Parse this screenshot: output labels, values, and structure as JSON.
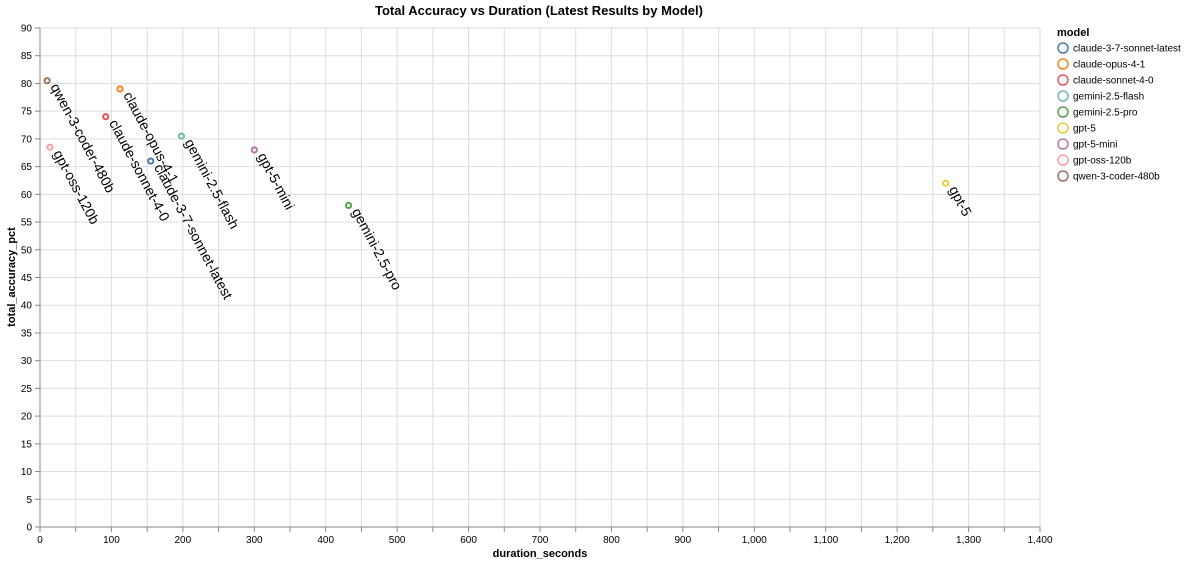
{
  "chart_data": {
    "type": "scatter",
    "title": "Total Accuracy vs Duration (Latest Results by Model)",
    "xlabel": "duration_seconds",
    "ylabel": "total_accuracy_pct",
    "xlim": [
      0,
      1400
    ],
    "ylim": [
      0,
      90
    ],
    "x_ticks": [
      "0",
      "100",
      "200",
      "300",
      "400",
      "500",
      "600",
      "700",
      "800",
      "900",
      "1,000",
      "1,100",
      "1,200",
      "1,300",
      "1,400"
    ],
    "y_ticks": [
      "0",
      "5",
      "10",
      "15",
      "20",
      "25",
      "30",
      "35",
      "40",
      "45",
      "50",
      "55",
      "60",
      "65",
      "70",
      "75",
      "80",
      "85",
      "90"
    ],
    "grid": true,
    "legend": {
      "title": "model",
      "placement": "right",
      "entries": [
        "claude-3-7-sonnet-latest",
        "claude-opus-4-1",
        "claude-sonnet-4-0",
        "gemini-2.5-flash",
        "gemini-2.5-pro",
        "gpt-5",
        "gpt-5-mini",
        "gpt-oss-120b",
        "qwen-3-coder-480b"
      ]
    },
    "series": [
      {
        "name": "claude-3-7-sonnet-latest",
        "color": "#4c78a8",
        "x": [
          155
        ],
        "y": [
          66
        ],
        "label": "claude-3-7-sonnet-latest"
      },
      {
        "name": "claude-opus-4-1",
        "color": "#f58518",
        "x": [
          112
        ],
        "y": [
          79
        ],
        "label": "claude-opus-4-1"
      },
      {
        "name": "claude-sonnet-4-0",
        "color": "#e45756",
        "x": [
          92
        ],
        "y": [
          74
        ],
        "label": "claude-sonnet-4-0"
      },
      {
        "name": "gemini-2.5-flash",
        "color": "#72b7b2",
        "x": [
          198
        ],
        "y": [
          70.5
        ],
        "label": "gemini-2.5-flash"
      },
      {
        "name": "gemini-2.5-pro",
        "color": "#54a24b",
        "x": [
          432
        ],
        "y": [
          58
        ],
        "label": "gemini-2.5-pro"
      },
      {
        "name": "gpt-5",
        "color": "#eeca3b",
        "x": [
          1268
        ],
        "y": [
          62
        ],
        "label": "gpt-5"
      },
      {
        "name": "gpt-5-mini",
        "color": "#b279a2",
        "x": [
          300
        ],
        "y": [
          68
        ],
        "label": "gpt-5-mini"
      },
      {
        "name": "gpt-oss-120b",
        "color": "#ff9da6",
        "x": [
          14
        ],
        "y": [
          68.5
        ],
        "label": "gpt-oss-120b"
      },
      {
        "name": "qwen-3-coder-480b",
        "color": "#9d755d",
        "x": [
          10
        ],
        "y": [
          80.5
        ],
        "label": "qwen-3-coder-480b"
      }
    ]
  }
}
